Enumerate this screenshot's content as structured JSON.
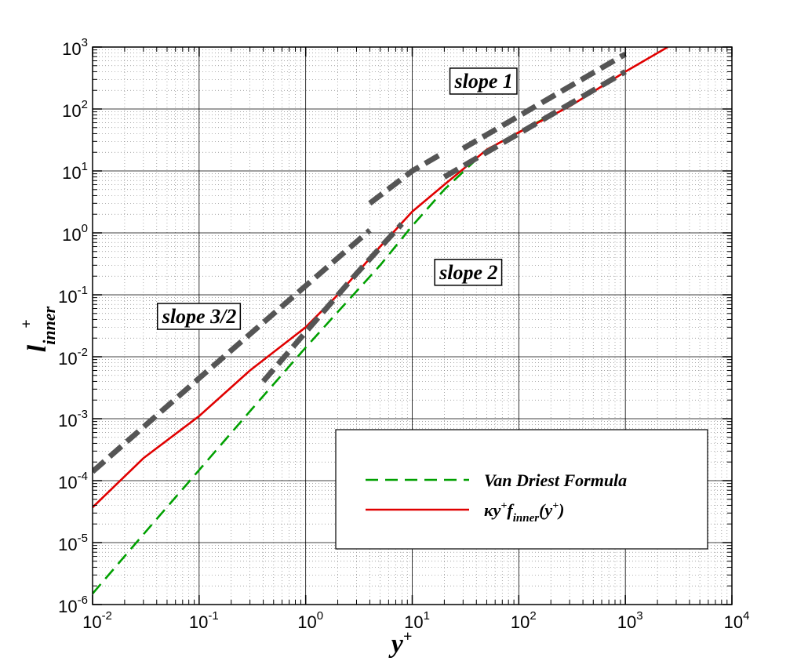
{
  "chart_data": {
    "type": "line",
    "x_scale": "log",
    "y_scale": "log",
    "xlim": [
      0.01,
      10000
    ],
    "ylim": [
      1e-06,
      1000
    ],
    "grid": true,
    "legend_position": "bottom-right",
    "xlabel": {
      "base": "y",
      "sup": "+"
    },
    "ylabel": {
      "base": "l",
      "sub": "inner",
      "sup": "+"
    },
    "x_ticks": [
      {
        "base": "10",
        "exp": "-2"
      },
      {
        "base": "10",
        "exp": "-1"
      },
      {
        "base": "10",
        "exp": "0"
      },
      {
        "base": "10",
        "exp": "1"
      },
      {
        "base": "10",
        "exp": "2"
      },
      {
        "base": "10",
        "exp": "3"
      },
      {
        "base": "10",
        "exp": "4"
      }
    ],
    "y_ticks": [
      {
        "base": "10",
        "exp": "-6"
      },
      {
        "base": "10",
        "exp": "-5"
      },
      {
        "base": "10",
        "exp": "-4"
      },
      {
        "base": "10",
        "exp": "-3"
      },
      {
        "base": "10",
        "exp": "-2"
      },
      {
        "base": "10",
        "exp": "-1"
      },
      {
        "base": "10",
        "exp": "0"
      },
      {
        "base": "10",
        "exp": "1"
      },
      {
        "base": "10",
        "exp": "2"
      },
      {
        "base": "10",
        "exp": "3"
      }
    ],
    "annotations": [
      {
        "text": "slope 1",
        "x": 25,
        "y": 220
      },
      {
        "text": "slope 2",
        "x": 18,
        "y": 0.18
      },
      {
        "text": "slope 3/2",
        "x": 0.045,
        "y": 0.035
      }
    ],
    "series": [
      {
        "name": "Van Driest Formula",
        "style": "dashed",
        "color": "#00a000",
        "x": [
          0.01,
          0.03,
          0.1,
          0.3,
          1,
          2,
          5,
          10,
          20,
          50,
          100,
          200
        ],
        "y": [
          1.5e-06,
          1.36e-05,
          0.000148,
          0.00132,
          0.0141,
          0.053,
          0.3,
          1.3,
          5,
          22,
          42,
          80
        ]
      },
      {
        "name": "κy+finner(y+)",
        "style": "solid",
        "color": "#e00000",
        "x": [
          0.01,
          0.03,
          0.1,
          0.3,
          1,
          2,
          5,
          10,
          20,
          50,
          100,
          300,
          1000,
          2500
        ],
        "y": [
          3.7e-05,
          0.00023,
          0.0011,
          0.006,
          0.03,
          0.1,
          0.6,
          2.2,
          6,
          22,
          42,
          110,
          400,
          1000
        ]
      },
      {
        "style": "thick-dashed",
        "color": "#555555",
        "x": [
          0.01,
          0.1,
          1,
          4
        ],
        "y": [
          0.00014,
          0.0045,
          0.14,
          1.1
        ]
      },
      {
        "style": "thick-dashed",
        "color": "#555555",
        "x": [
          0.4,
          1,
          3,
          8
        ],
        "y": [
          0.004,
          0.025,
          0.22,
          1.4
        ]
      },
      {
        "style": "thick-dashed",
        "color": "#555555",
        "x": [
          4,
          10,
          20
        ],
        "y": [
          3,
          10,
          20
        ]
      },
      {
        "style": "thick-dashed",
        "color": "#555555",
        "x": [
          20,
          100,
          1000
        ],
        "y": [
          8,
          40,
          400
        ]
      },
      {
        "style": "thick-dashed",
        "color": "#555555",
        "x": [
          30,
          100,
          1000
        ],
        "y": [
          23,
          77,
          770
        ]
      }
    ],
    "legend": {
      "entries": [
        {
          "text": "Van Driest Formula",
          "style": "dashed",
          "color": "#00a000"
        },
        {
          "text_parts": [
            {
              "t": "κy",
              "k": "n"
            },
            {
              "t": "+",
              "k": "sup"
            },
            {
              "t": "f",
              "k": "n"
            },
            {
              "t": "inner",
              "k": "sub"
            },
            {
              "t": "(y",
              "k": "n"
            },
            {
              "t": "+",
              "k": "sup"
            },
            {
              "t": ")",
              "k": "n"
            }
          ],
          "style": "solid",
          "color": "#e00000"
        }
      ]
    }
  }
}
